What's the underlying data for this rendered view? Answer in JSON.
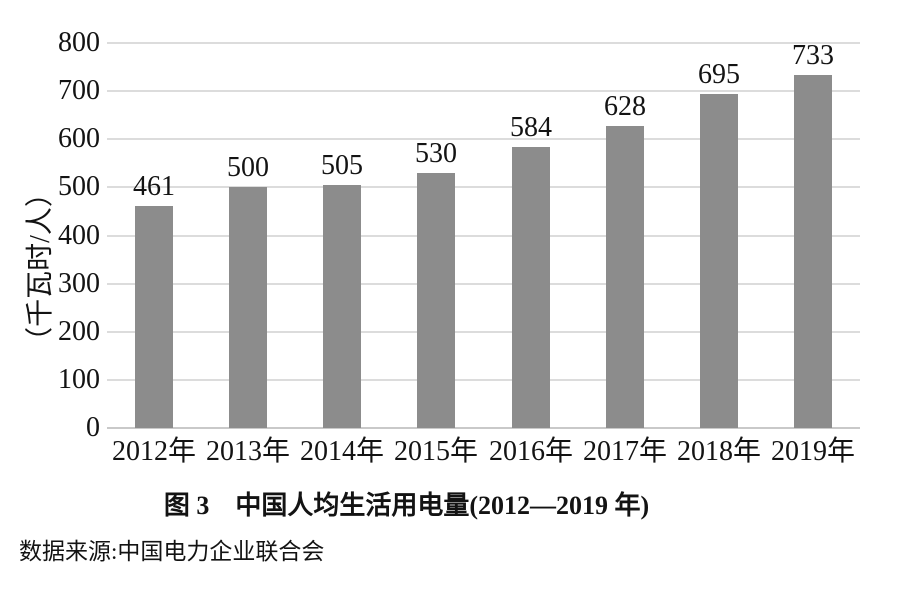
{
  "figure": {
    "caption": "图 3　中国人均生活用电量(2012—2019 年)",
    "source": "数据来源:中国电力企业联合会"
  },
  "chart_data": {
    "type": "bar",
    "title": "图 3　中国人均生活用电量(2012—2019 年)",
    "categories": [
      "2012年",
      "2013年",
      "2014年",
      "2015年",
      "2016年",
      "2017年",
      "2018年",
      "2019年"
    ],
    "values": [
      461,
      500,
      505,
      530,
      584,
      628,
      695,
      733
    ],
    "xlabel": "",
    "ylabel": "（千瓦时/人）",
    "ylim": [
      0,
      800
    ],
    "yticks": [
      0,
      100,
      200,
      300,
      400,
      500,
      600,
      700,
      800
    ],
    "grid": true,
    "legend": false,
    "data_labels": true,
    "bar_color": "#8c8c8c",
    "gridline_color": "#dcdcdc",
    "baseline_color": "#c9c9c9",
    "text_color": "#131313"
  }
}
